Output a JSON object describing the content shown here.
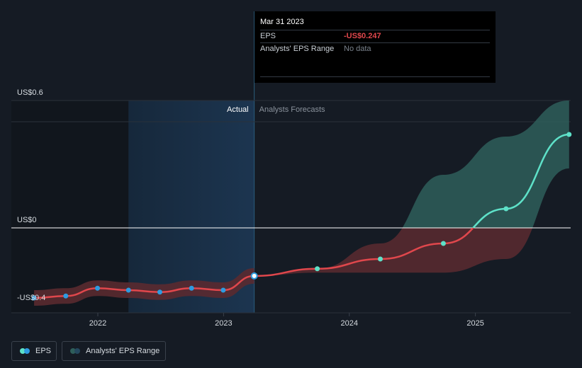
{
  "chart_data": {
    "type": "line",
    "title": "",
    "y_unit": "US$",
    "ylim": [
      -0.4,
      0.6
    ],
    "y_ticks": [
      {
        "value": 0.6,
        "label": "US$0.6"
      },
      {
        "value": 0.0,
        "label": "US$0"
      },
      {
        "value": -0.4,
        "label": "-US$0.4"
      }
    ],
    "x_ticks": [
      "2022",
      "2023",
      "2024",
      "2025"
    ],
    "regions": {
      "actual_label": "Actual",
      "forecast_label": "Analysts Forecasts"
    },
    "series": [
      {
        "name": "EPS",
        "kind": "actual",
        "x": [
          "2021-06-30",
          "2021-09-30",
          "2021-12-31",
          "2022-03-31",
          "2022-06-30",
          "2022-09-30",
          "2022-12-31",
          "2023-03-31"
        ],
        "values": [
          -0.36,
          -0.35,
          -0.31,
          -0.32,
          -0.33,
          -0.31,
          -0.32,
          -0.247
        ]
      },
      {
        "name": "EPS forecast",
        "kind": "forecast",
        "x": [
          "2023-03-31",
          "2023-09-30",
          "2024-03-31",
          "2024-09-30",
          "2025-03-31",
          "2025-09-30"
        ],
        "values": [
          -0.247,
          -0.21,
          -0.16,
          -0.08,
          0.09,
          0.44
        ]
      },
      {
        "name": "Analysts' EPS Range",
        "kind": "range",
        "x": [
          "2023-03-31",
          "2023-09-30",
          "2024-03-31",
          "2024-09-30",
          "2025-03-31",
          "2025-09-30"
        ],
        "low": [
          -0.247,
          -0.23,
          -0.23,
          -0.23,
          -0.16,
          0.28
        ],
        "high": [
          -0.247,
          -0.21,
          -0.08,
          0.25,
          0.43,
          0.6
        ]
      }
    ],
    "colors": {
      "eps_line": "#e0474c",
      "eps_dot": "#2d9be0",
      "forecast_line": "#5ee1c8",
      "range_fill": "#2e5e5a",
      "range_fill_neg": "#5a2a30",
      "zero_line": "#ffffff",
      "actual_band": "#1c3550"
    }
  },
  "tooltip": {
    "date": "Mar 31 2023",
    "eps_label": "EPS",
    "eps_value": "-US$0.247",
    "range_label": "Analysts' EPS Range",
    "range_value": "No data"
  },
  "legend": {
    "eps_label": "EPS",
    "range_label": "Analysts' EPS Range",
    "eps_icon": "eps-dots",
    "range_icon": "range-dots"
  }
}
